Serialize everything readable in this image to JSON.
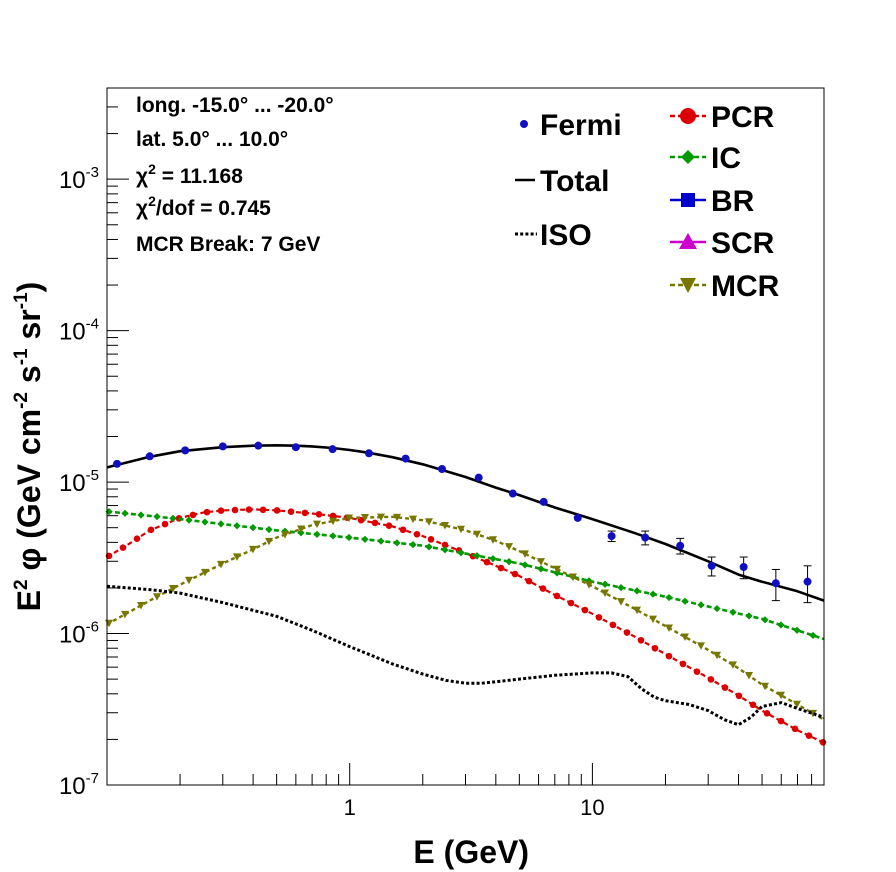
{
  "chart_data": {
    "type": "line",
    "title": "",
    "xlabel": "E (GeV)",
    "ylabel_parts": {
      "E": "E",
      "E_sup": "2",
      "phi": "φ",
      "open": " (GeV cm",
      "cm_sup": "-2",
      "s": " s",
      "s_sup": "-1",
      "sr": " sr",
      "sr_sup": "-1",
      "close": ")"
    },
    "x_scale": "log",
    "y_scale": "log",
    "xlim": [
      0.1,
      90
    ],
    "ylim": [
      1e-07,
      0.004
    ],
    "x_tick_labels": [
      {
        "value": 1,
        "label": "1"
      },
      {
        "value": 10,
        "label": "10"
      }
    ],
    "y_tick_labels": [
      {
        "value": 1e-07,
        "base": "10",
        "exp": "-7"
      },
      {
        "value": 1e-06,
        "base": "10",
        "exp": "-6"
      },
      {
        "value": 1e-05,
        "base": "10",
        "exp": "-5"
      },
      {
        "value": 0.0001,
        "base": "10",
        "exp": "-4"
      },
      {
        "value": 0.001,
        "base": "10",
        "exp": "-3"
      }
    ],
    "info_lines": [
      "long. -15.0° ... -20.0°",
      "lat. 5.0° ... 10.0°",
      {
        "prefix": "χ",
        "sup": "2",
        "rest": " = 11.168"
      },
      {
        "prefix": "χ",
        "sup": "2",
        "rest": "/dof = 0.745"
      },
      "MCR Break:  7 GeV"
    ],
    "legend": [
      {
        "label": "Fermi",
        "style": "points"
      },
      {
        "label": "Total",
        "style": "solid"
      },
      {
        "label": "ISO",
        "style": "dotted"
      },
      {
        "label": "PCR",
        "style": "circles"
      },
      {
        "label": "IC",
        "style": "diamonds"
      },
      {
        "label": "BR",
        "style": "squares"
      },
      {
        "label": "SCR",
        "style": "triangles-up"
      },
      {
        "label": "MCR",
        "style": "triangles-down"
      }
    ],
    "colors": {
      "fermi": "#1010c0",
      "total": "#000000",
      "iso": "#000000",
      "pcr": "#dd0000",
      "ic": "#009900",
      "br": "#0000cc",
      "scr": "#cc00cc",
      "mcr": "#777700"
    },
    "fermi_points": [
      {
        "x": 0.11,
        "y": 1.32e-05,
        "err": 0
      },
      {
        "x": 0.15,
        "y": 1.48e-05,
        "err": 0
      },
      {
        "x": 0.21,
        "y": 1.62e-05,
        "err": 0
      },
      {
        "x": 0.3,
        "y": 1.72e-05,
        "err": 0
      },
      {
        "x": 0.42,
        "y": 1.74e-05,
        "err": 0
      },
      {
        "x": 0.6,
        "y": 1.7e-05,
        "err": 0
      },
      {
        "x": 0.85,
        "y": 1.65e-05,
        "err": 0
      },
      {
        "x": 1.2,
        "y": 1.55e-05,
        "err": 0
      },
      {
        "x": 1.7,
        "y": 1.43e-05,
        "err": 0
      },
      {
        "x": 2.4,
        "y": 1.22e-05,
        "err": 0
      },
      {
        "x": 3.4,
        "y": 1.07e-05,
        "err": 0
      },
      {
        "x": 4.7,
        "y": 8.4e-06,
        "err": 0
      },
      {
        "x": 6.3,
        "y": 7.4e-06,
        "err": 0
      },
      {
        "x": 8.7,
        "y": 5.8e-06,
        "err": 0
      },
      {
        "x": 12.0,
        "y": 4.4e-06,
        "err": 3.5e-07
      },
      {
        "x": 16.5,
        "y": 4.3e-06,
        "err": 4.5e-07
      },
      {
        "x": 23.0,
        "y": 3.8e-06,
        "err": 4.5e-07
      },
      {
        "x": 31.0,
        "y": 2.8e-06,
        "err": 4e-07
      },
      {
        "x": 42.0,
        "y": 2.75e-06,
        "err": 4.5e-07
      },
      {
        "x": 57.0,
        "y": 2.15e-06,
        "err": 5e-07
      },
      {
        "x": 77.0,
        "y": 2.2e-06,
        "err": 6e-07
      }
    ],
    "series": [
      {
        "key": "total",
        "x": [
          0.1,
          0.15,
          0.2,
          0.3,
          0.4,
          0.5,
          0.6,
          0.7,
          0.85,
          1.0,
          1.2,
          1.5,
          2.0,
          2.5,
          3.0,
          4.0,
          5.0,
          7.0,
          10.0,
          15.0,
          20.0,
          30.0,
          40.0,
          50.0,
          70.0,
          90.0
        ],
        "y": [
          1.25e-05,
          1.47e-05,
          1.6e-05,
          1.7e-05,
          1.74e-05,
          1.75e-05,
          1.74e-05,
          1.72e-05,
          1.68e-05,
          1.63e-05,
          1.56e-05,
          1.46e-05,
          1.31e-05,
          1.18e-05,
          1.08e-05,
          9.2e-06,
          8.2e-06,
          6.8e-06,
          5.7e-06,
          4.6e-06,
          3.9e-06,
          3e-06,
          2.45e-06,
          2.2e-06,
          1.9e-06,
          1.65e-06
        ]
      },
      {
        "key": "pcr",
        "x": [
          0.1,
          0.12,
          0.15,
          0.2,
          0.25,
          0.3,
          0.4,
          0.5,
          0.7,
          1.0,
          1.5,
          2.0,
          3.0,
          4.0,
          5.0,
          7.0,
          10.0,
          15.0,
          20.0,
          30.0,
          40.0,
          50.0,
          70.0,
          90.0
        ],
        "y": [
          3.2e-06,
          3.8e-06,
          4.8e-06,
          5.8e-06,
          6.3e-06,
          6.5e-06,
          6.6e-06,
          6.5e-06,
          6.2e-06,
          5.8e-06,
          5.1e-06,
          4.4e-06,
          3.4e-06,
          2.8e-06,
          2.4e-06,
          1.8e-06,
          1.35e-06,
          9.5e-07,
          7.3e-07,
          5.1e-07,
          3.9e-07,
          3.1e-07,
          2.3e-07,
          1.9e-07
        ]
      },
      {
        "key": "ic",
        "x": [
          0.1,
          0.2,
          0.5,
          1.0,
          2.0,
          5.0,
          10.0,
          20.0,
          50.0,
          90.0
        ],
        "y": [
          6.4e-06,
          5.7e-06,
          4.8e-06,
          4.3e-06,
          3.8e-06,
          2.9e-06,
          2.2e-06,
          1.75e-06,
          1.25e-06,
          9.2e-07
        ]
      },
      {
        "key": "mcr",
        "x": [
          0.1,
          0.15,
          0.2,
          0.3,
          0.4,
          0.5,
          0.7,
          1.0,
          1.5,
          2.0,
          3.0,
          4.0,
          5.0,
          7.0,
          10.0,
          15.0,
          20.0,
          30.0,
          40.0,
          50.0,
          70.0,
          90.0
        ],
        "y": [
          1.15e-06,
          1.65e-06,
          2.1e-06,
          2.9e-06,
          3.6e-06,
          4.3e-06,
          5.2e-06,
          5.8e-06,
          5.9e-06,
          5.6e-06,
          4.8e-06,
          4.1e-06,
          3.5e-06,
          2.7e-06,
          2.05e-06,
          1.45e-06,
          1.12e-06,
          7.8e-07,
          5.9e-07,
          4.6e-07,
          3.4e-07,
          2.7e-07
        ]
      },
      {
        "key": "iso",
        "x": [
          0.1,
          0.15,
          0.2,
          0.3,
          0.5,
          0.7,
          1.0,
          1.5,
          2.0,
          2.5,
          3.0,
          3.5,
          4.0,
          5.0,
          7.0,
          10.0,
          12.0,
          14.0,
          16.0,
          18.0,
          20.0,
          25.0,
          30.0,
          35.0,
          40.0,
          45.0,
          50.0,
          60.0,
          70.0,
          90.0
        ],
        "y": [
          2.05e-06,
          1.95e-06,
          1.85e-06,
          1.6e-06,
          1.3e-06,
          1.05e-06,
          8.2e-07,
          6.3e-07,
          5.4e-07,
          4.9e-07,
          4.7e-07,
          4.7e-07,
          4.8e-07,
          5e-07,
          5.3e-07,
          5.5e-07,
          5.5e-07,
          5.2e-07,
          4.3e-07,
          3.8e-07,
          3.6e-07,
          3.4e-07,
          3.1e-07,
          2.7e-07,
          2.5e-07,
          2.8e-07,
          3.3e-07,
          3.5e-07,
          3.2e-07,
          2.8e-07
        ]
      }
    ]
  }
}
